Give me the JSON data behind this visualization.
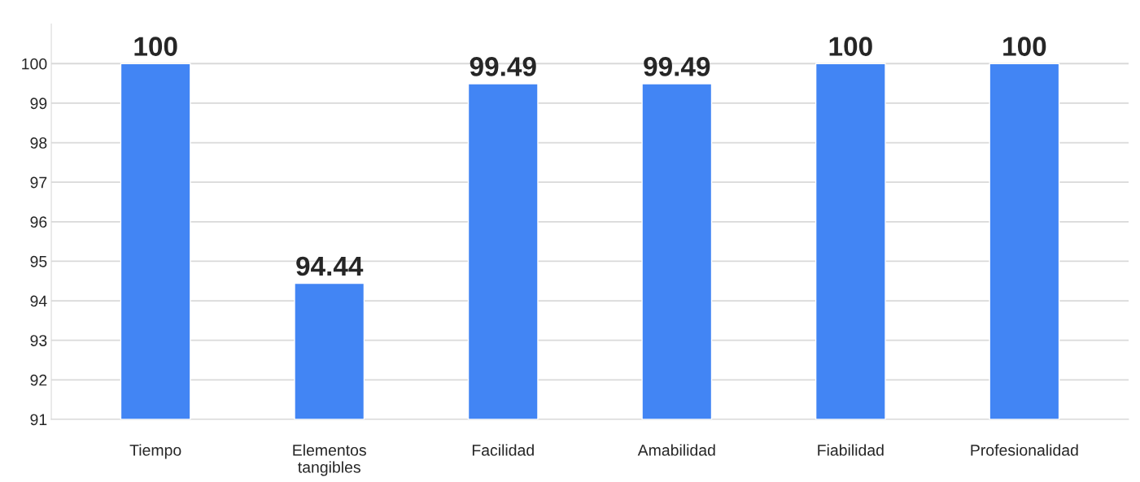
{
  "chart_data": {
    "type": "bar",
    "categories": [
      "Tiempo",
      "Elementos\ntangibles",
      "Facilidad",
      "Amabilidad",
      "Fiabilidad",
      "Profesionalidad"
    ],
    "values": [
      100,
      94.44,
      99.49,
      99.49,
      100,
      100
    ],
    "color": "#4285f4",
    "ylim": [
      91,
      101
    ],
    "yticks": [
      91,
      92,
      93,
      94,
      95,
      96,
      97,
      98,
      99,
      100
    ],
    "grid": "y",
    "data_labels": true
  }
}
